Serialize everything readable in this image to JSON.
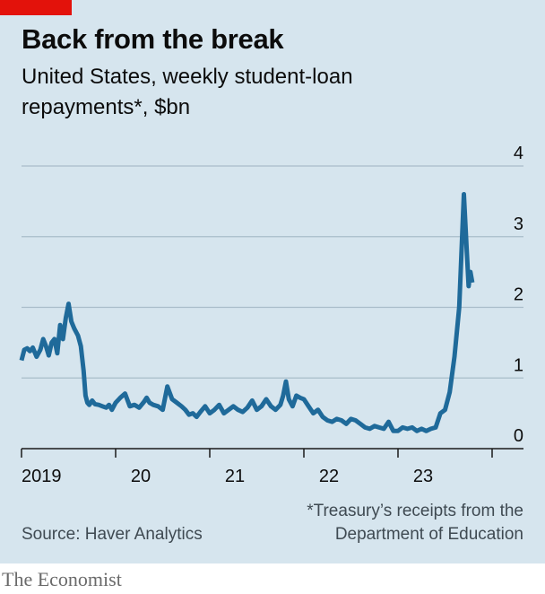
{
  "header": {
    "title": "Back from the break",
    "subtitle_line1": "United States, weekly student-loan",
    "subtitle_line2": "repayments*, $bn"
  },
  "footer": {
    "footnote_line1": "*Treasury’s receipts from the",
    "footnote_line2": "Department of Education",
    "source": "Source: Haver Analytics",
    "brand": "The Economist"
  },
  "colors": {
    "line": "#1f6a9a",
    "background": "#d6e5ee",
    "gridline": "#a9bcc9",
    "accent_red": "#e3120b"
  },
  "chart_data": {
    "type": "line",
    "title": "Back from the break",
    "subtitle": "United States, weekly student-loan repayments*, $bn",
    "xlabel": "",
    "ylabel": "",
    "ylim": [
      0,
      4
    ],
    "yticks": [
      0,
      1,
      2,
      3,
      4
    ],
    "xlim": [
      2019.0,
      2024.0
    ],
    "xtick_labels": [
      {
        "label": "2019",
        "x": 2019.0
      },
      {
        "label": "20",
        "x": 2020.0
      },
      {
        "label": "21",
        "x": 2021.0
      },
      {
        "label": "22",
        "x": 2022.0
      },
      {
        "label": "23",
        "x": 2023.0
      }
    ],
    "grid": true,
    "legend": "none",
    "series": [
      {
        "x": [
          2019.0,
          2019.03,
          2019.06,
          2019.09,
          2019.12,
          2019.16,
          2019.2,
          2019.23,
          2019.26,
          2019.29,
          2019.32,
          2019.35,
          2019.38,
          2019.41,
          2019.44,
          2019.47,
          2019.5,
          2019.53,
          2019.56,
          2019.6,
          2019.63,
          2019.66,
          2019.68,
          2019.7,
          2019.72,
          2019.75,
          2019.78,
          2019.82,
          2019.86,
          2019.9,
          2019.93,
          2019.96,
          2020.0,
          2020.05,
          2020.1,
          2020.15,
          2020.2,
          2020.25,
          2020.3,
          2020.33,
          2020.36,
          2020.4,
          2020.45,
          2020.5,
          2020.55,
          2020.6,
          2020.65,
          2020.7,
          2020.74,
          2020.78,
          2020.82,
          2020.86,
          2020.9,
          2020.95,
          2021.0,
          2021.05,
          2021.1,
          2021.15,
          2021.2,
          2021.25,
          2021.3,
          2021.35,
          2021.4,
          2021.45,
          2021.5,
          2021.55,
          2021.6,
          2021.65,
          2021.7,
          2021.75,
          2021.78,
          2021.81,
          2021.84,
          2021.88,
          2021.92,
          2021.96,
          2022.0,
          2022.05,
          2022.1,
          2022.15,
          2022.2,
          2022.25,
          2022.3,
          2022.35,
          2022.4,
          2022.45,
          2022.5,
          2022.55,
          2022.6,
          2022.65,
          2022.7,
          2022.75,
          2022.8,
          2022.85,
          2022.9,
          2022.95,
          2023.0,
          2023.05,
          2023.1,
          2023.15,
          2023.2,
          2023.25,
          2023.3,
          2023.35,
          2023.4,
          2023.45,
          2023.5,
          2023.55,
          2023.6,
          2023.65,
          2023.7,
          2023.73,
          2023.75,
          2023.77,
          2023.79
        ],
        "values": [
          1.25,
          1.4,
          1.42,
          1.38,
          1.43,
          1.3,
          1.4,
          1.55,
          1.45,
          1.32,
          1.5,
          1.55,
          1.35,
          1.75,
          1.55,
          1.85,
          2.05,
          1.8,
          1.7,
          1.6,
          1.45,
          1.1,
          0.75,
          0.65,
          0.62,
          0.68,
          0.63,
          0.62,
          0.6,
          0.58,
          0.62,
          0.55,
          0.65,
          0.72,
          0.78,
          0.6,
          0.62,
          0.58,
          0.66,
          0.72,
          0.65,
          0.62,
          0.6,
          0.55,
          0.88,
          0.7,
          0.65,
          0.6,
          0.55,
          0.48,
          0.5,
          0.45,
          0.52,
          0.6,
          0.5,
          0.55,
          0.62,
          0.5,
          0.55,
          0.6,
          0.55,
          0.52,
          0.58,
          0.68,
          0.55,
          0.6,
          0.7,
          0.6,
          0.55,
          0.62,
          0.75,
          0.95,
          0.7,
          0.6,
          0.75,
          0.72,
          0.7,
          0.6,
          0.5,
          0.55,
          0.45,
          0.4,
          0.38,
          0.42,
          0.4,
          0.35,
          0.42,
          0.4,
          0.35,
          0.3,
          0.28,
          0.32,
          0.3,
          0.28,
          0.38,
          0.25,
          0.25,
          0.3,
          0.28,
          0.3,
          0.25,
          0.28,
          0.25,
          0.28,
          0.3,
          0.5,
          0.55,
          0.8,
          1.3,
          2.0,
          3.6,
          2.8,
          2.3,
          2.5,
          2.35
        ]
      }
    ]
  }
}
